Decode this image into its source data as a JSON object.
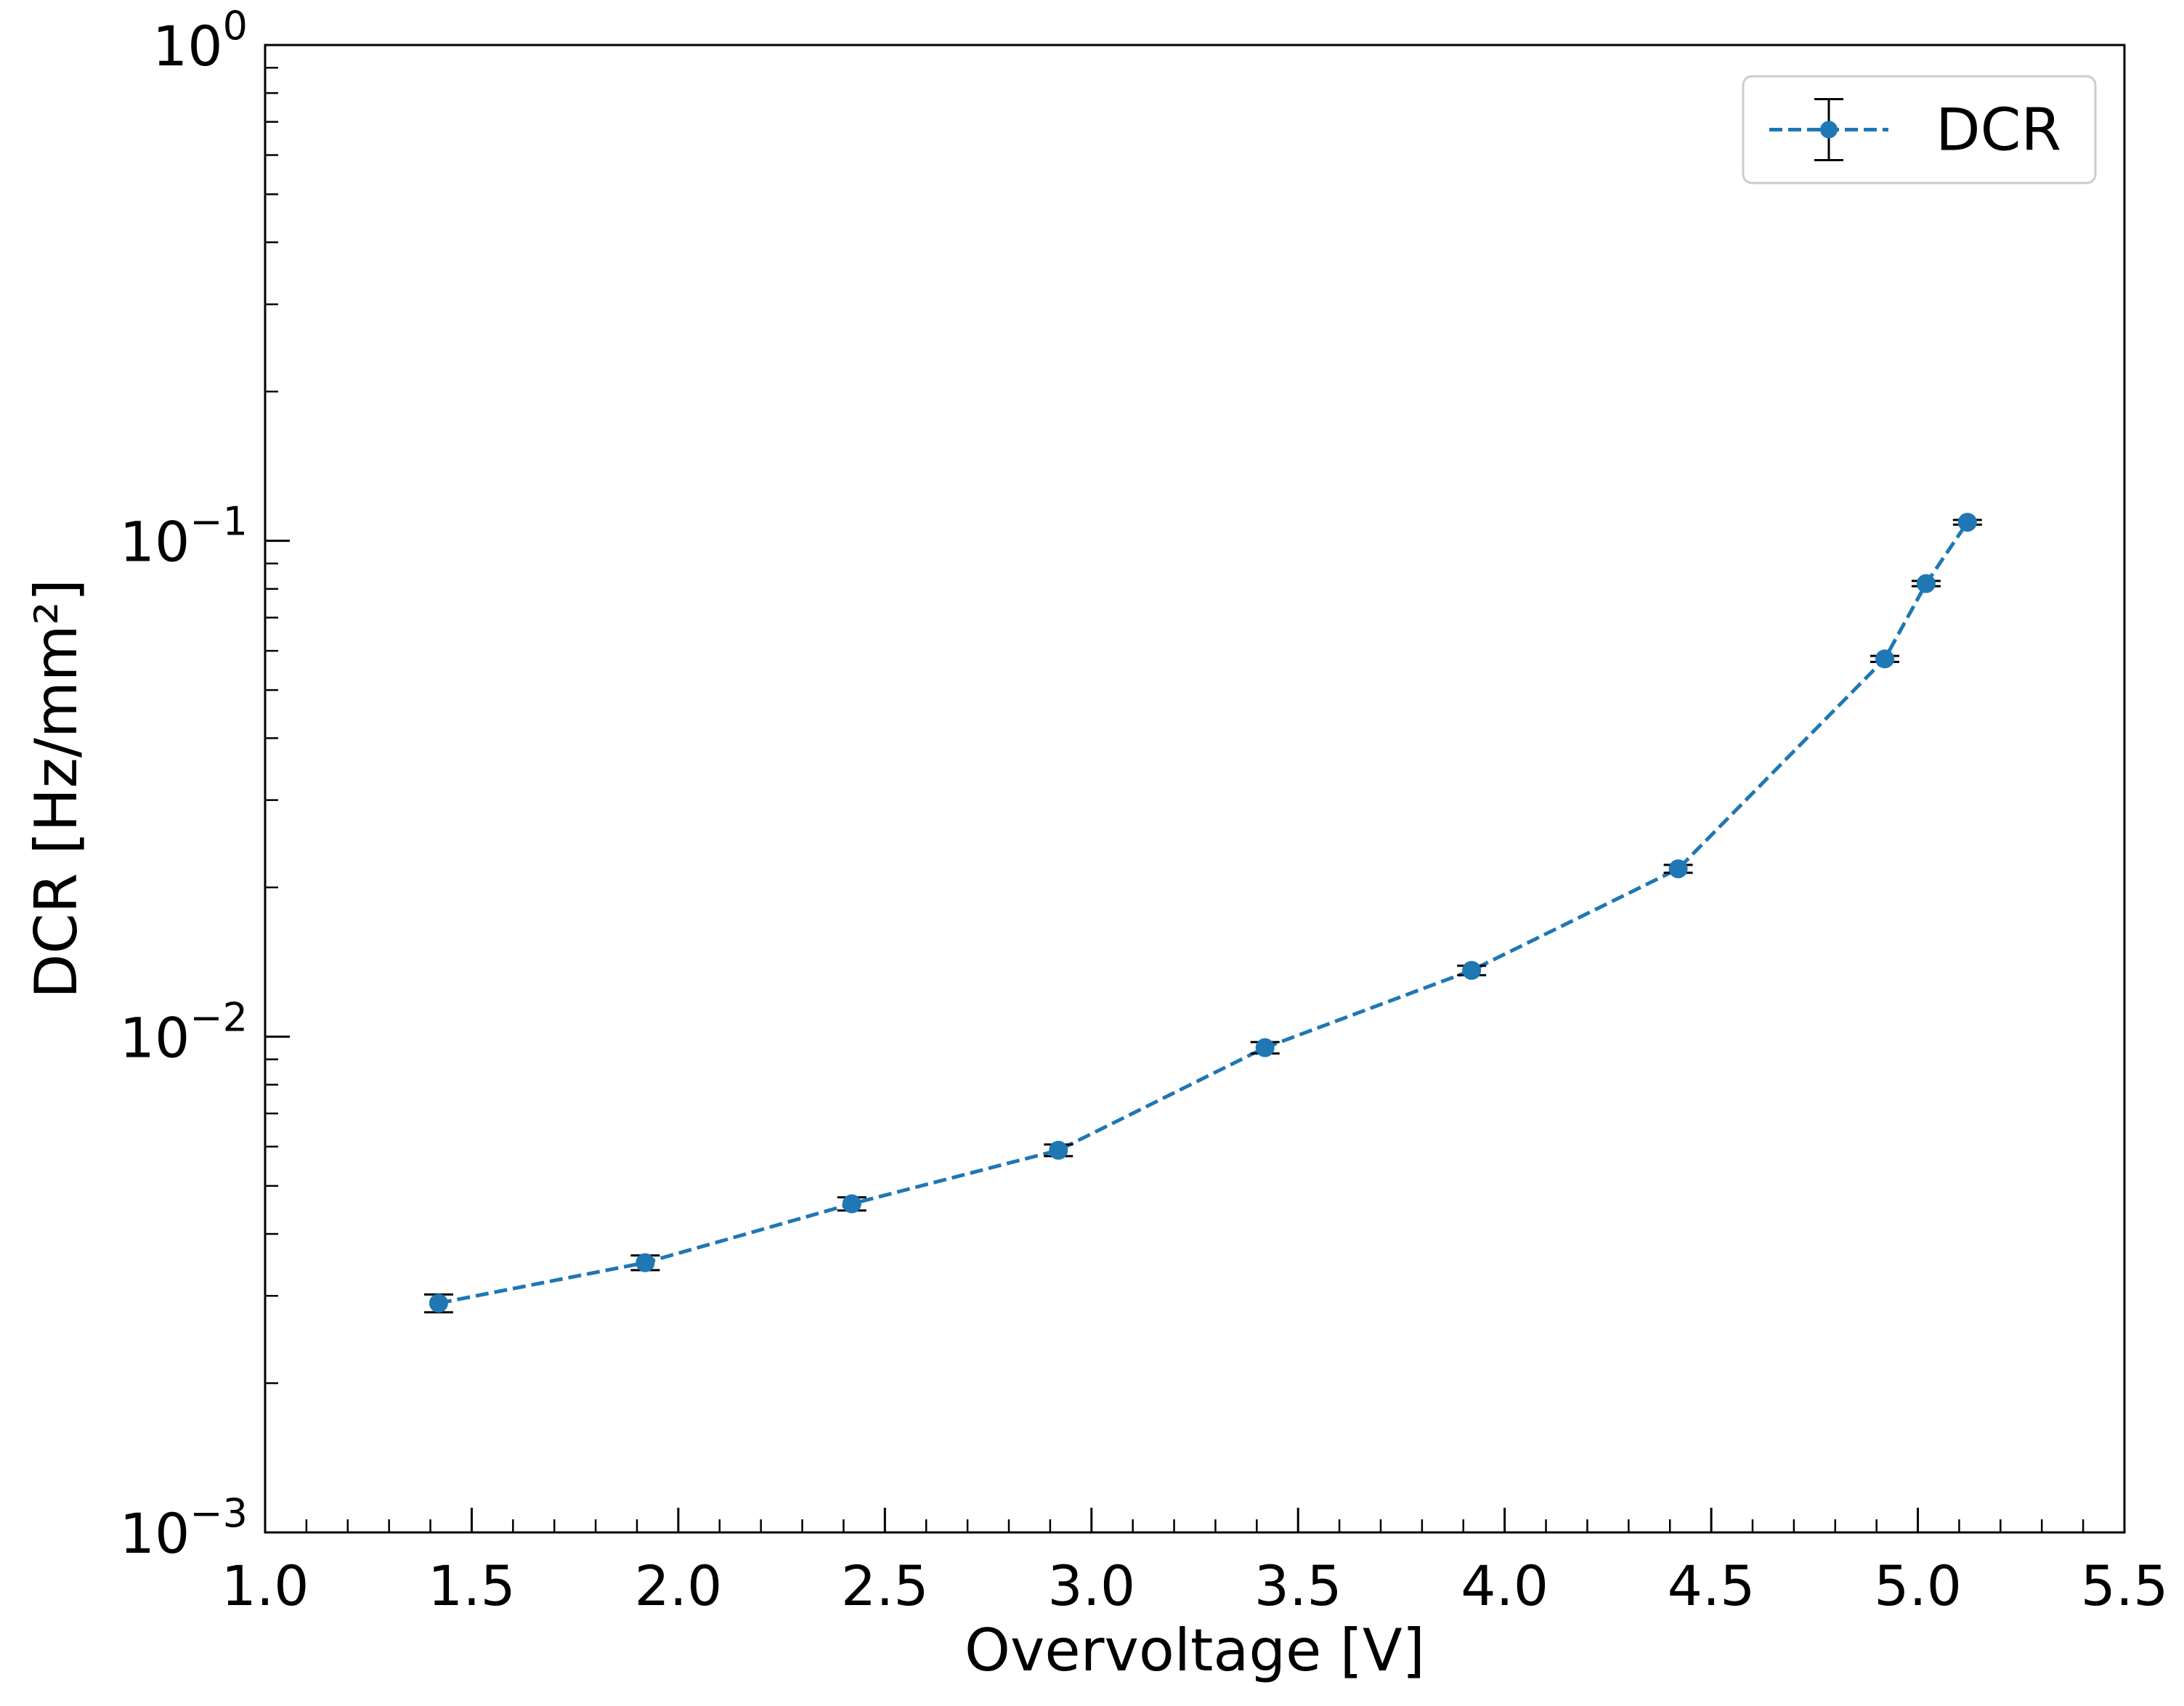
{
  "chart_data": {
    "type": "line",
    "xlabel": "Overvoltage [V]",
    "ylabel": "DCR [Hz/mm²]",
    "xlim": [
      1.0,
      5.5
    ],
    "ylim": [
      0.001,
      1
    ],
    "yscale": "log",
    "grid": false,
    "legend_position": "top-right",
    "x_ticks": [
      "1.0",
      "1.5",
      "2.0",
      "2.5",
      "3.0",
      "3.5",
      "4.0",
      "4.5",
      "5.0",
      "5.5"
    ],
    "y_ticks": [
      {
        "base": "10",
        "exp": "−3",
        "value": 0.001
      },
      {
        "base": "10",
        "exp": "−2",
        "value": 0.01
      },
      {
        "base": "10",
        "exp": "−1",
        "value": 0.1
      },
      {
        "base": "10",
        "exp": "0",
        "value": 1
      }
    ],
    "series": [
      {
        "name": "DCR",
        "color": "#1f77b4",
        "linestyle": "dashed",
        "marker": "circle",
        "x": [
          1.42,
          1.92,
          2.42,
          2.92,
          3.42,
          3.92,
          4.42,
          4.92,
          5.02,
          5.12
        ],
        "y": [
          0.0029,
          0.0035,
          0.0046,
          0.0059,
          0.0095,
          0.0136,
          0.0218,
          0.0578,
          0.082,
          0.109
        ],
        "yerr": [
          0.00012,
          0.00012,
          0.00014,
          0.00016,
          0.00025,
          0.0003,
          0.0004,
          0.0008,
          0.001,
          0.0012
        ]
      }
    ]
  }
}
